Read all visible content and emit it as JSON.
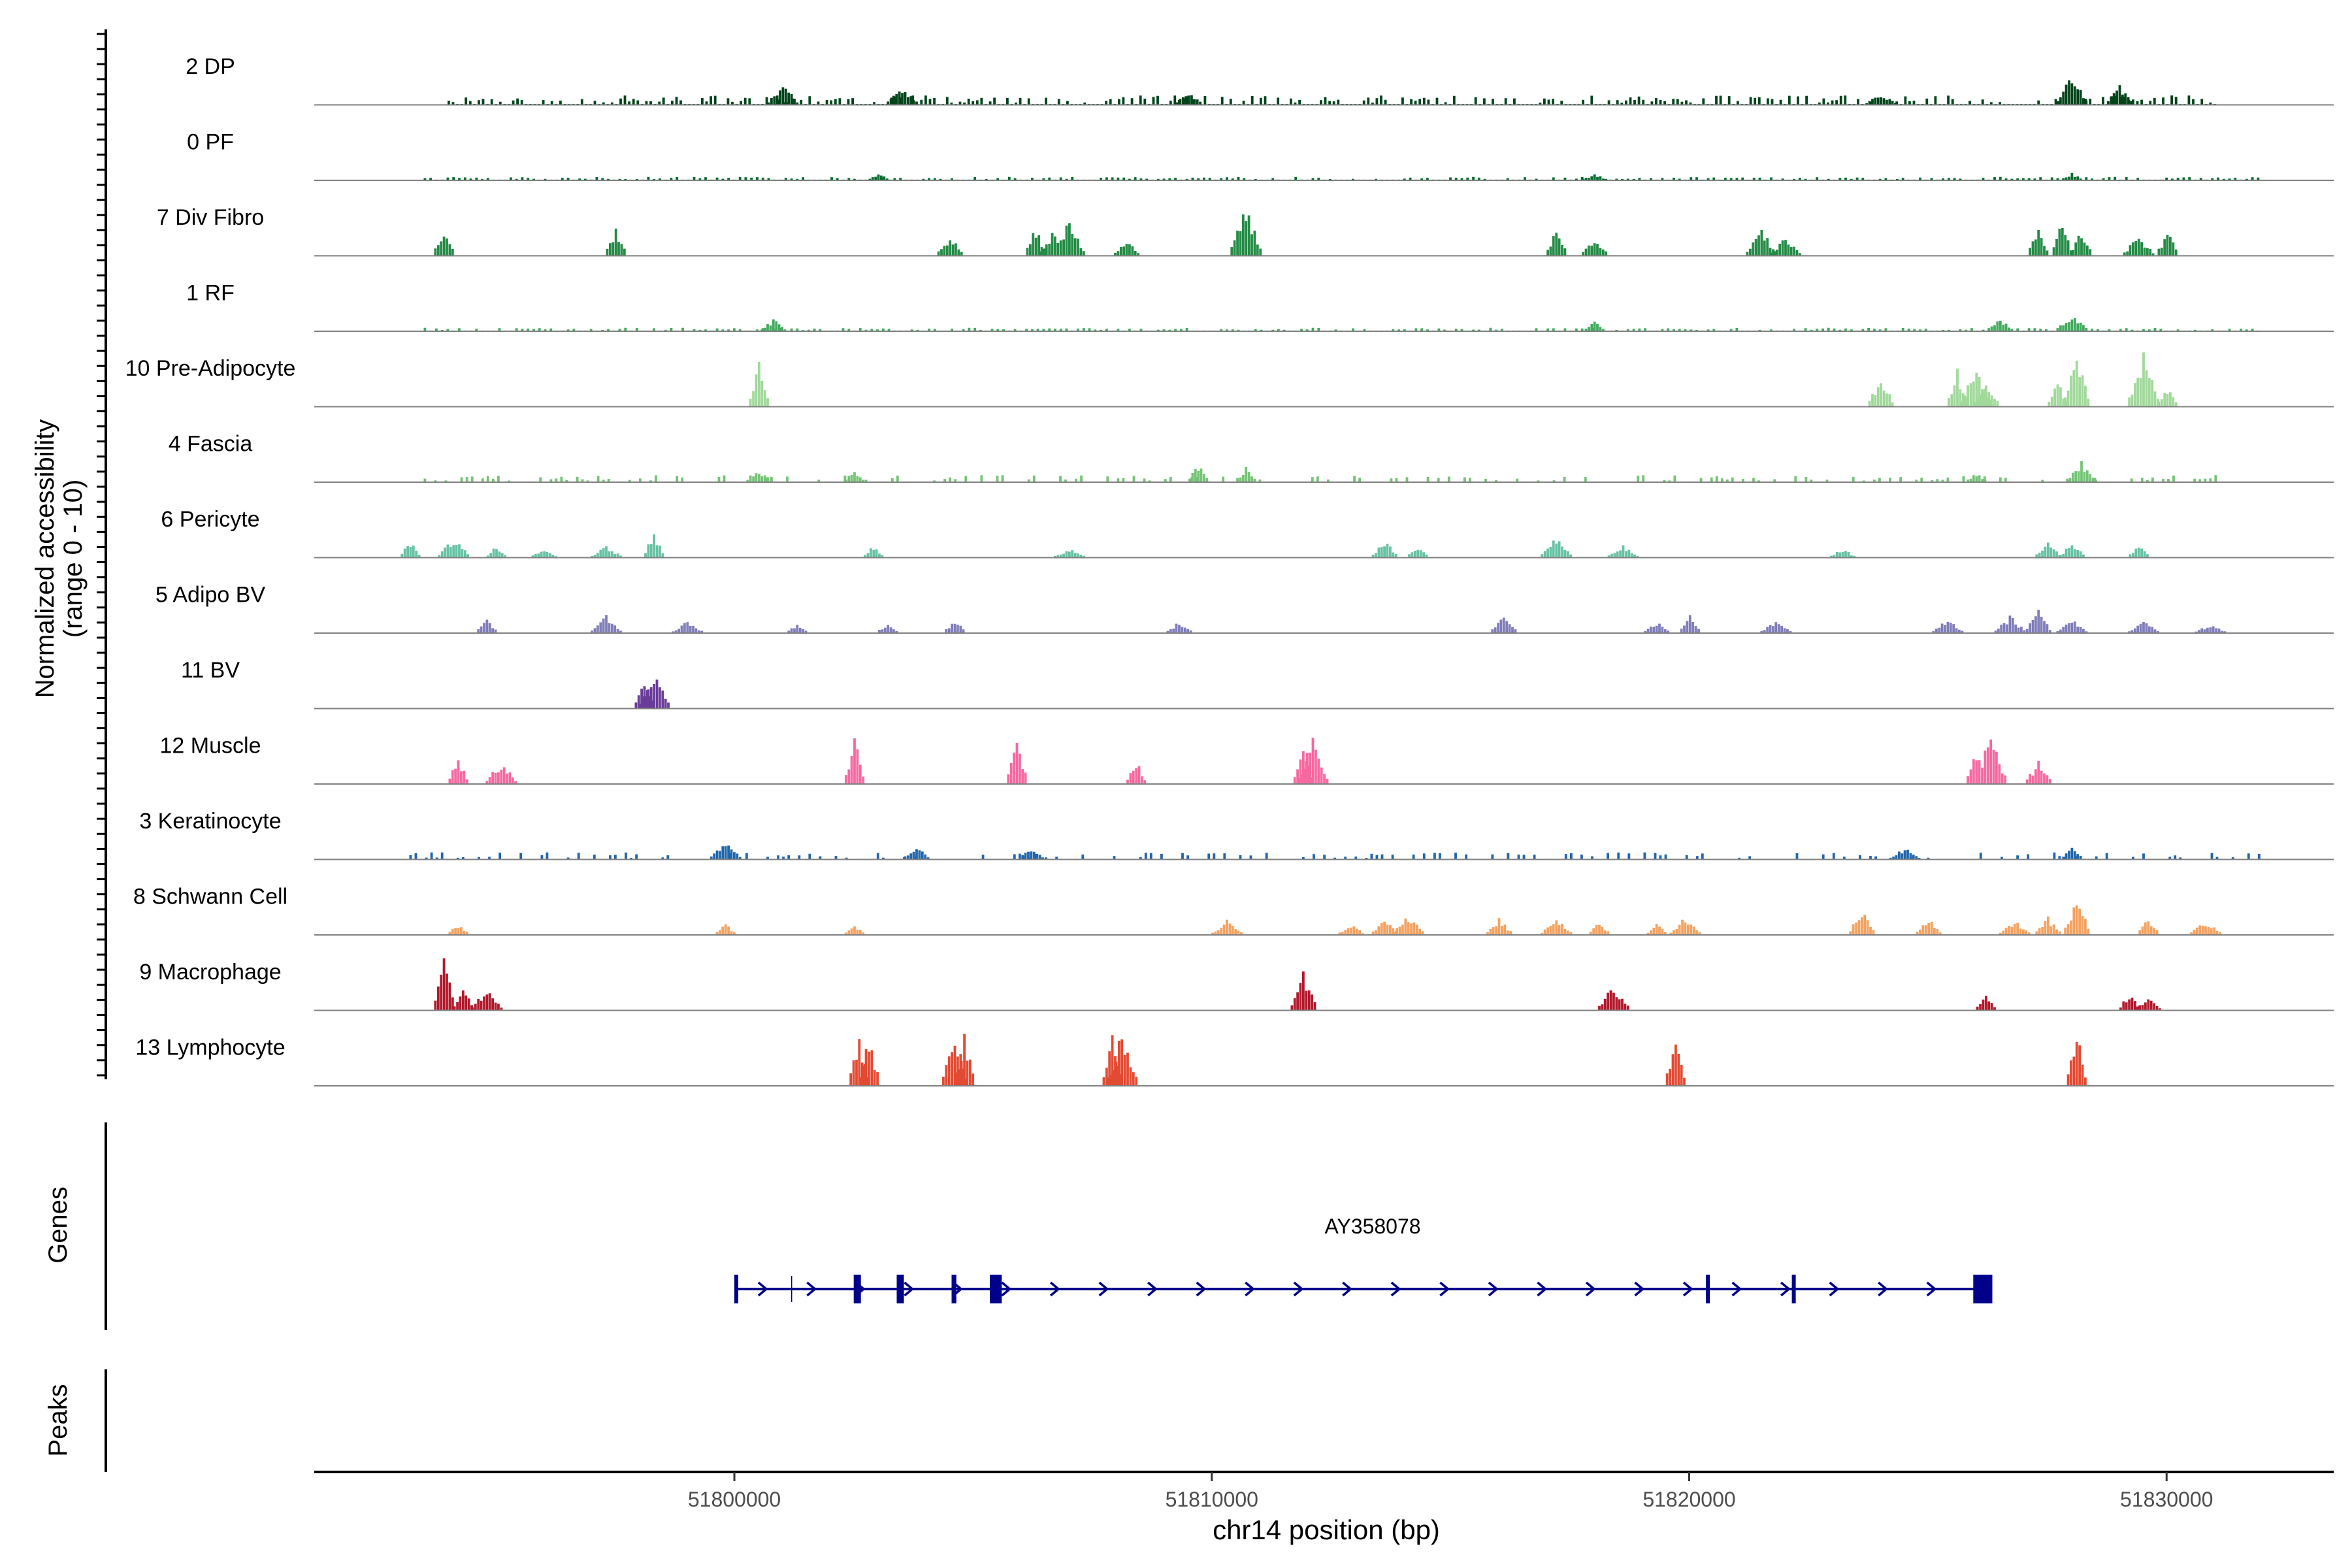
{
  "chart_data": {
    "type": "area",
    "chromosome": "chr14",
    "xlabel": "chr14 position (bp)",
    "ylabel_line1": "Normalized accessibility",
    "ylabel_line2": "(range 0 - 10)",
    "xlim": [
      51791200,
      51833500
    ],
    "x_ticks": [
      {
        "value": 51800000,
        "label": "51800000"
      },
      {
        "value": 51810000,
        "label": "51810000"
      },
      {
        "value": 51820000,
        "label": "51820000"
      },
      {
        "value": 51830000,
        "label": "51830000"
      }
    ],
    "y_range": [
      0,
      10
    ],
    "series": [
      {
        "name": "2 DP",
        "color": "#00441b",
        "range": [
          51794000,
          51831000
        ],
        "style": "dense",
        "seed": 11,
        "peaks": [
          [
            51801000,
            0.35
          ],
          [
            51803500,
            0.3
          ],
          [
            51809500,
            0.25
          ],
          [
            51824000,
            0.2
          ],
          [
            51828000,
            0.5
          ],
          [
            51829000,
            0.35
          ]
        ]
      },
      {
        "name": "0 PF",
        "color": "#006d2c",
        "range": [
          51793500,
          51832000
        ],
        "style": "flat",
        "seed": 23,
        "peaks": [
          [
            51803000,
            0.12
          ],
          [
            51818000,
            0.1
          ],
          [
            51828000,
            0.12
          ]
        ]
      },
      {
        "name": "7 Div Fibro",
        "color": "#238b45",
        "style": "sparse",
        "seed": 37,
        "peaks": [
          [
            51793900,
            0.55
          ],
          [
            51797500,
            0.5
          ],
          [
            51804500,
            0.35
          ],
          [
            51806300,
            0.5
          ],
          [
            51806700,
            0.45
          ],
          [
            51807000,
            0.6
          ],
          [
            51808200,
            0.3
          ],
          [
            51810700,
            0.85
          ],
          [
            51817200,
            0.5
          ],
          [
            51818000,
            0.35
          ],
          [
            51821500,
            0.45
          ],
          [
            51822000,
            0.3
          ],
          [
            51827300,
            0.55
          ],
          [
            51827800,
            0.6
          ],
          [
            51828200,
            0.5
          ],
          [
            51829400,
            0.35
          ],
          [
            51830000,
            0.45
          ]
        ]
      },
      {
        "name": "1 RF",
        "color": "#41ab5d",
        "range": [
          51793500,
          51832000
        ],
        "style": "flat",
        "seed": 41,
        "peaks": [
          [
            51800800,
            0.2
          ],
          [
            51818000,
            0.18
          ],
          [
            51828000,
            0.3
          ],
          [
            51826500,
            0.2
          ]
        ]
      },
      {
        "name": "10 Pre-Adipocyte",
        "color": "#a1d99b",
        "style": "sparse",
        "seed": 53,
        "peaks": [
          [
            51800500,
            0.85
          ],
          [
            51824000,
            0.55
          ],
          [
            51825600,
            0.65
          ],
          [
            51826000,
            0.75
          ],
          [
            51826200,
            0.5
          ],
          [
            51827700,
            0.45
          ],
          [
            51828100,
            1.0
          ],
          [
            51829500,
            0.9
          ],
          [
            51830000,
            0.35
          ]
        ]
      },
      {
        "name": "4 Fascia",
        "color": "#74c476",
        "range": [
          51793500,
          51832000
        ],
        "style": "medium",
        "seed": 67,
        "peaks": [
          [
            51800500,
            0.2
          ],
          [
            51802500,
            0.2
          ],
          [
            51809700,
            0.3
          ],
          [
            51810700,
            0.25
          ],
          [
            51828200,
            0.35
          ],
          [
            51826000,
            0.15
          ]
        ]
      },
      {
        "name": "6 Pericyte",
        "color": "#66c2a4",
        "style": "sparse",
        "seed": 79,
        "peaks": [
          [
            51793200,
            0.3
          ],
          [
            51794100,
            0.35
          ],
          [
            51795000,
            0.2
          ],
          [
            51796000,
            0.15
          ],
          [
            51797300,
            0.2
          ],
          [
            51798300,
            0.45
          ],
          [
            51802900,
            0.2
          ],
          [
            51807000,
            0.15
          ],
          [
            51813600,
            0.3
          ],
          [
            51814300,
            0.2
          ],
          [
            51817200,
            0.4
          ],
          [
            51818600,
            0.2
          ],
          [
            51823200,
            0.15
          ],
          [
            51827500,
            0.3
          ],
          [
            51828000,
            0.25
          ],
          [
            51829400,
            0.25
          ]
        ]
      },
      {
        "name": "5 Adipo BV",
        "color": "#807dba",
        "style": "sparse",
        "seed": 83,
        "peaks": [
          [
            51794800,
            0.25
          ],
          [
            51797300,
            0.3
          ],
          [
            51799000,
            0.2
          ],
          [
            51801300,
            0.15
          ],
          [
            51803200,
            0.2
          ],
          [
            51804600,
            0.25
          ],
          [
            51809300,
            0.2
          ],
          [
            51816100,
            0.3
          ],
          [
            51819300,
            0.2
          ],
          [
            51820000,
            0.3
          ],
          [
            51821800,
            0.2
          ],
          [
            51825400,
            0.25
          ],
          [
            51826700,
            0.3
          ],
          [
            51827300,
            0.4
          ],
          [
            51828000,
            0.25
          ],
          [
            51829500,
            0.2
          ],
          [
            51830900,
            0.15
          ]
        ]
      },
      {
        "name": "11 BV",
        "color": "#6a3d9a",
        "style": "sparse",
        "seed": 97,
        "peaks": [
          [
            51798100,
            0.65
          ],
          [
            51798300,
            0.65
          ]
        ]
      },
      {
        "name": "12 Muscle",
        "color": "#f768a1",
        "style": "sparse",
        "seed": 101,
        "peaks": [
          [
            51794200,
            0.45
          ],
          [
            51795100,
            0.4
          ],
          [
            51802500,
            0.8
          ],
          [
            51805900,
            0.8
          ],
          [
            51808400,
            0.4
          ],
          [
            51811900,
            0.75
          ],
          [
            51812100,
            0.8
          ],
          [
            51826000,
            0.55
          ],
          [
            51826300,
            0.85
          ],
          [
            51827300,
            0.4
          ]
        ]
      },
      {
        "name": "3 Keratinocyte",
        "color": "#2166ac",
        "range": [
          51793200,
          51832000
        ],
        "style": "medium",
        "seed": 113,
        "peaks": [
          [
            51799800,
            0.3
          ],
          [
            51803800,
            0.25
          ],
          [
            51806200,
            0.2
          ],
          [
            51824500,
            0.2
          ],
          [
            51828000,
            0.25
          ]
        ]
      },
      {
        "name": "8 Schwann Cell",
        "color": "#f4a261",
        "style": "sparse",
        "seed": 127,
        "peaks": [
          [
            51794200,
            0.2
          ],
          [
            51799800,
            0.2
          ],
          [
            51802500,
            0.2
          ],
          [
            51810300,
            0.25
          ],
          [
            51812900,
            0.2
          ],
          [
            51813600,
            0.3
          ],
          [
            51814100,
            0.35
          ],
          [
            51816000,
            0.3
          ],
          [
            51817200,
            0.3
          ],
          [
            51818100,
            0.25
          ],
          [
            51819300,
            0.2
          ],
          [
            51819900,
            0.3
          ],
          [
            51823600,
            0.45
          ],
          [
            51825000,
            0.3
          ],
          [
            51826800,
            0.25
          ],
          [
            51827500,
            0.3
          ],
          [
            51828100,
            0.65
          ],
          [
            51829600,
            0.3
          ],
          [
            51830800,
            0.25
          ]
        ]
      },
      {
        "name": "9 Macrophage",
        "color": "#b2182b",
        "style": "sparse",
        "seed": 131,
        "peaks": [
          [
            51793900,
            1.0
          ],
          [
            51794300,
            0.4
          ],
          [
            51794800,
            0.4
          ],
          [
            51811900,
            0.7
          ],
          [
            51818400,
            0.45
          ],
          [
            51826200,
            0.25
          ],
          [
            51829200,
            0.3
          ],
          [
            51829600,
            0.25
          ]
        ]
      },
      {
        "name": "13 Lymphocyte",
        "color": "#e34a33",
        "style": "sparse",
        "seed": 149,
        "peaks": [
          [
            51802600,
            0.9
          ],
          [
            51802800,
            0.9
          ],
          [
            51804600,
            0.9
          ],
          [
            51804800,
            0.9
          ],
          [
            51807900,
            0.9
          ],
          [
            51808100,
            0.9
          ],
          [
            51819700,
            0.85
          ],
          [
            51828100,
            0.9
          ]
        ]
      }
    ],
    "gene_track": {
      "label": "Genes",
      "gene_name": "AY358078",
      "start": 51800000,
      "end": 51826300,
      "strand": "+",
      "exons": [
        [
          51800000,
          51800050
        ],
        [
          51802500,
          51802650
        ],
        [
          51803400,
          51803550
        ],
        [
          51804550,
          51804650
        ],
        [
          51805350,
          51805600
        ],
        [
          51820350,
          51820400
        ],
        [
          51822150,
          51822200
        ],
        [
          51825950,
          51826350
        ]
      ],
      "minor_tick": 51801200,
      "color": "#00008b"
    },
    "peaks_track": {
      "label": "Peaks",
      "regions": []
    }
  }
}
